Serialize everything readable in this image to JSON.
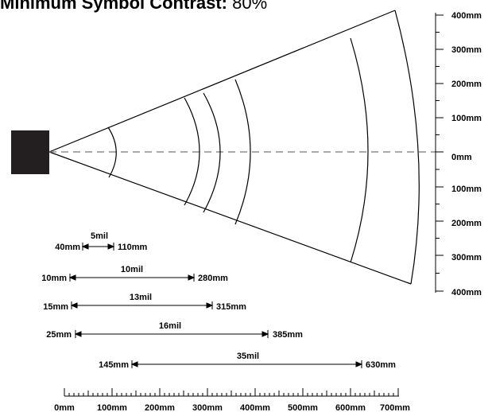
{
  "title": {
    "label": "Minimum Symbol Contrast:",
    "value": "80%"
  },
  "vertical_scale": [
    "400mm",
    "300mm",
    "200mm",
    "100mm",
    "0mm",
    "100mm",
    "200mm",
    "300mm",
    "400mm"
  ],
  "ranges": [
    {
      "mil": "5mil",
      "near": "40mm",
      "far": "110mm"
    },
    {
      "mil": "10mil",
      "near": "10mm",
      "far": "280mm"
    },
    {
      "mil": "13mil",
      "near": "15mm",
      "far": "315mm"
    },
    {
      "mil": "16mil",
      "near": "25mm",
      "far": "385mm"
    },
    {
      "mil": "35mil",
      "near": "145mm",
      "far": "630mm"
    }
  ],
  "horizontal_scale": [
    "0mm",
    "100mm",
    "200mm",
    "300mm",
    "400mm",
    "500mm",
    "600mm",
    "700mm"
  ],
  "colors": {
    "ink": "#000000",
    "scanner": "#231f20",
    "centerline": "#777777"
  }
}
